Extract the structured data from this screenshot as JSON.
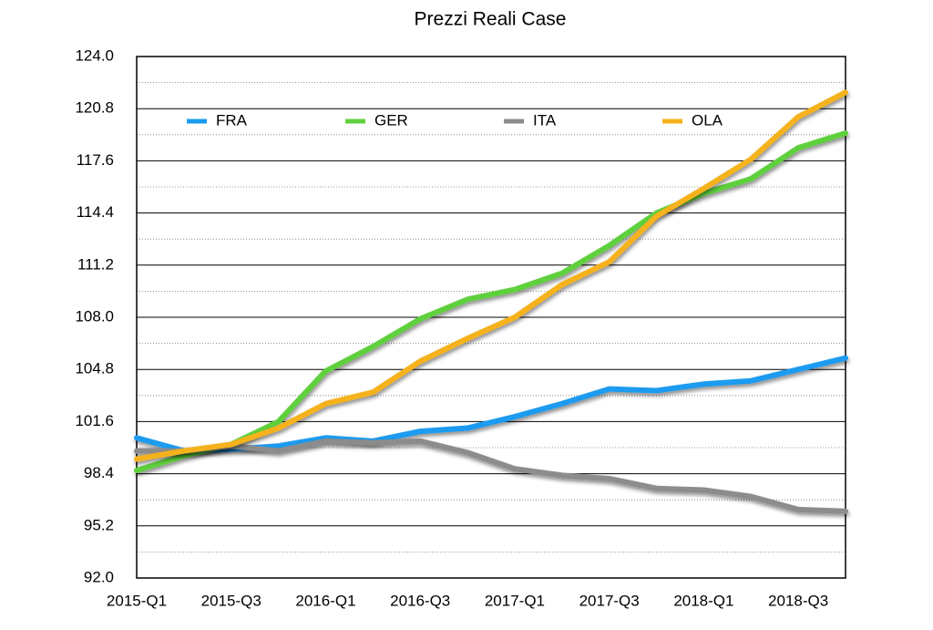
{
  "chart_data": {
    "type": "line",
    "title": "Prezzi Reali Case",
    "categories": [
      "2015-Q1",
      null,
      "2015-Q3",
      null,
      "2016-Q1",
      null,
      "2016-Q3",
      null,
      "2017-Q1",
      null,
      "2017-Q3",
      null,
      "2018-Q1",
      null,
      "2018-Q3",
      null
    ],
    "series": [
      {
        "name": "FRA",
        "color": "#1a9bf0",
        "values": [
          100.6,
          99.8,
          99.9,
          100.1,
          100.6,
          100.4,
          101.0,
          101.2,
          101.9,
          102.7,
          103.6,
          103.5,
          103.9,
          104.1,
          104.8,
          105.5
        ]
      },
      {
        "name": "GER",
        "color": "#5fd03c",
        "values": [
          98.6,
          99.5,
          100.2,
          101.6,
          104.7,
          106.2,
          107.9,
          109.1,
          109.7,
          110.7,
          112.4,
          114.4,
          115.6,
          116.5,
          118.4,
          119.3
        ]
      },
      {
        "name": "ITA",
        "color": "#8c8c8c",
        "values": [
          99.8,
          99.8,
          100.1,
          99.8,
          100.4,
          100.3,
          100.4,
          99.7,
          98.7,
          98.3,
          98.1,
          97.5,
          97.4,
          97.0,
          96.2,
          96.1
        ]
      },
      {
        "name": "OLA",
        "color": "#f5b21b",
        "values": [
          99.3,
          99.8,
          100.2,
          101.2,
          102.7,
          103.4,
          105.3,
          106.7,
          108.0,
          110.0,
          111.4,
          114.2,
          115.9,
          117.7,
          120.3,
          121.8
        ]
      }
    ],
    "ylim": [
      92,
      124
    ],
    "yticks": [
      {
        "value": 92,
        "label": "92.0"
      },
      {
        "value": 95.2,
        "label": "95.2"
      },
      {
        "value": 98.4,
        "label": "98.4"
      },
      {
        "value": 101.6,
        "label": "101.6"
      },
      {
        "value": 104.8,
        "label": "104.8"
      },
      {
        "value": 108,
        "label": "108.0"
      },
      {
        "value": 111.2,
        "label": "111.2"
      },
      {
        "value": 114.4,
        "label": "114.4"
      },
      {
        "value": 117.6,
        "label": "117.6"
      },
      {
        "value": 120.8,
        "label": "120.8"
      },
      {
        "value": 124,
        "label": "124.0"
      }
    ],
    "grid": true,
    "legend": "upper left"
  }
}
